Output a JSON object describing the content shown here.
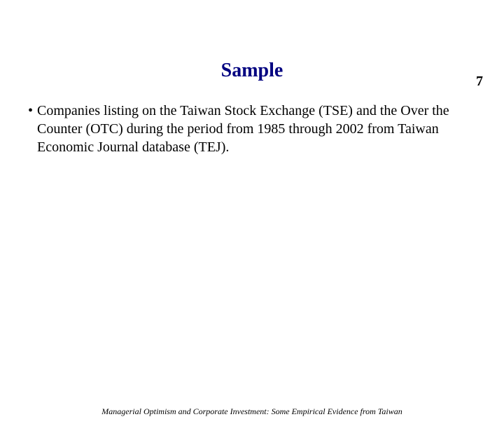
{
  "page": {
    "number": "7",
    "title": "Sample",
    "title_color": "#000080",
    "bullet_text": "Companies listing on the Taiwan Stock Exchange (TSE) and the Over the Counter (OTC) during the period from 1985 through 2002 from Taiwan Economic Journal database (TEJ).",
    "footer": "Managerial Optimism and Corporate Investment: Some Empirical Evidence from Taiwan",
    "background_color": "#ffffff",
    "text_color": "#000000",
    "title_fontsize": 28,
    "body_fontsize": 20,
    "footer_fontsize": 12
  }
}
